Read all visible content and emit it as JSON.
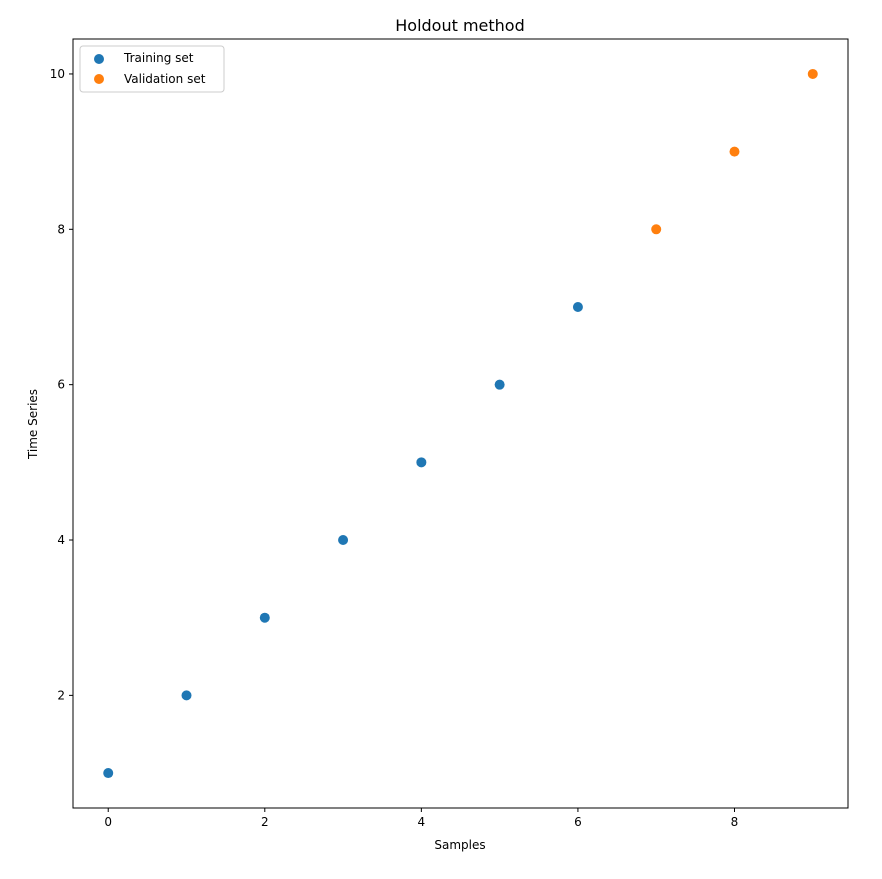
{
  "chart_data": {
    "type": "scatter",
    "title": "Holdout method",
    "xlabel": "Samples",
    "ylabel": "Time Series",
    "xlim": [
      -0.45,
      9.45
    ],
    "ylim": [
      0.55,
      10.45
    ],
    "xticks": [
      0,
      2,
      4,
      6,
      8
    ],
    "yticks": [
      2,
      4,
      6,
      8,
      10
    ],
    "grid": false,
    "legend_position": "upper left",
    "series": [
      {
        "name": "Training set",
        "color": "#1f77b4",
        "x": [
          0,
          1,
          2,
          3,
          4,
          5,
          6
        ],
        "y": [
          1,
          2,
          3,
          4,
          5,
          6,
          7
        ]
      },
      {
        "name": "Validation set",
        "color": "#ff7f0e",
        "x": [
          7,
          8,
          9
        ],
        "y": [
          8,
          9,
          10
        ]
      }
    ]
  }
}
